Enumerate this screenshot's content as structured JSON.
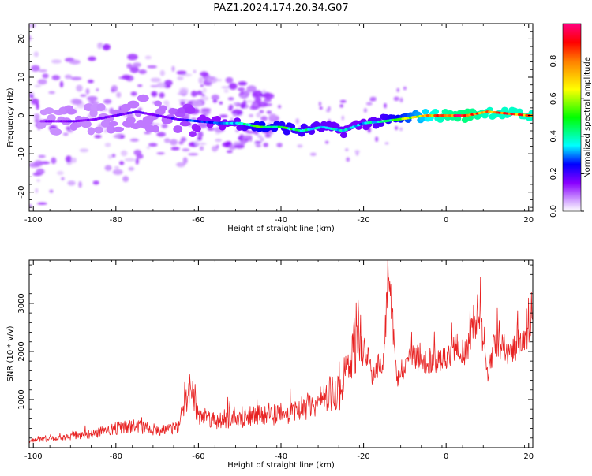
{
  "title": "PAZ1.2024.174.20.34.G07",
  "chart_data": [
    {
      "type": "heatmap",
      "xlabel": "Height of straight line (km)",
      "ylabel": "Frequency (Hz)",
      "xlim": [
        -101,
        21
      ],
      "ylim": [
        -25,
        24
      ],
      "xticks": [
        -100,
        -80,
        -60,
        -40,
        -20,
        0,
        20
      ],
      "xtick_labels": [
        "-100",
        "-80",
        "-60",
        "-40",
        "-20",
        "0",
        "20"
      ],
      "yticks": [
        -20,
        -10,
        0,
        10,
        20
      ],
      "ytick_labels": [
        "-20",
        "-10",
        "0",
        "10",
        "20"
      ],
      "grid": false,
      "colorbar": {
        "label": "Normalized spectral amplitude",
        "range": [
          0,
          1
        ],
        "ticks": [
          0.0,
          0.2,
          0.4,
          0.6,
          0.8
        ],
        "tick_labels": [
          "0.0",
          "0.2",
          "0.4",
          "0.6",
          "0.8"
        ],
        "colors": [
          "#ffffff",
          "#d8b0ff",
          "#8a00ff",
          "#0000ff",
          "#00ffff",
          "#00ff00",
          "#ffff00",
          "#ff7f00",
          "#ff0000",
          "#ff007f"
        ]
      },
      "ridge_frequency": {
        "x": [
          -95,
          -90,
          -85,
          -80,
          -75,
          -70,
          -65,
          -60,
          -55,
          -50,
          -45,
          -40,
          -35,
          -30,
          -25,
          -20,
          -15,
          -10,
          -5,
          0,
          5,
          10,
          15,
          20
        ],
        "y": [
          -1.5,
          -1.5,
          -1,
          0,
          1,
          0,
          -1,
          -1.5,
          -2,
          -2,
          -3,
          -3,
          -4,
          -3,
          -4,
          -2,
          -1.5,
          -0.8,
          0,
          0,
          0,
          1,
          0.5,
          0
        ]
      },
      "ridge_amplitude": {
        "x": [
          -95,
          -90,
          -85,
          -80,
          -75,
          -70,
          -65,
          -60,
          -55,
          -50,
          -45,
          -40,
          -35,
          -30,
          -25,
          -20,
          -15,
          -10,
          -5,
          0,
          5,
          10,
          15,
          20
        ],
        "y": [
          0.15,
          0.18,
          0.15,
          0.18,
          0.18,
          0.18,
          0.22,
          0.3,
          0.32,
          0.38,
          0.55,
          0.5,
          0.45,
          0.4,
          0.38,
          0.35,
          0.45,
          0.6,
          0.75,
          0.9,
          0.95,
          0.85,
          0.85,
          0.85
        ]
      }
    },
    {
      "type": "line",
      "xlabel": "Height of straight line (km)",
      "ylabel": "SNR (10 * v/v)",
      "xlim": [
        -101,
        21
      ],
      "ylim": [
        0,
        3900
      ],
      "xticks": [
        -100,
        -80,
        -60,
        -40,
        -20,
        0,
        20
      ],
      "xtick_labels": [
        "-100",
        "-80",
        "-60",
        "-40",
        "-20",
        "0",
        "20"
      ],
      "yticks": [
        1000,
        2000,
        3000
      ],
      "ytick_labels": [
        "1000",
        "2000",
        "3000"
      ],
      "grid": false,
      "color": "#e82222",
      "series": [
        {
          "x": [
            -101,
            -95,
            -90,
            -85,
            -80,
            -75,
            -70,
            -65,
            -62,
            -60,
            -55,
            -50,
            -45,
            -40,
            -35,
            -30,
            -25,
            -21,
            -18,
            -15,
            -14,
            -12,
            -10,
            -8,
            -5,
            -2,
            0,
            2,
            5,
            8,
            10,
            12,
            15,
            18,
            21
          ],
          "y": [
            150,
            180,
            250,
            300,
            400,
            450,
            350,
            400,
            1300,
            700,
            550,
            600,
            700,
            700,
            800,
            1000,
            1200,
            2600,
            1500,
            1900,
            3850,
            1400,
            1700,
            1900,
            1750,
            1800,
            1800,
            2100,
            2000,
            2900,
            1500,
            2200,
            2000,
            2200,
            2500
          ]
        }
      ]
    }
  ]
}
